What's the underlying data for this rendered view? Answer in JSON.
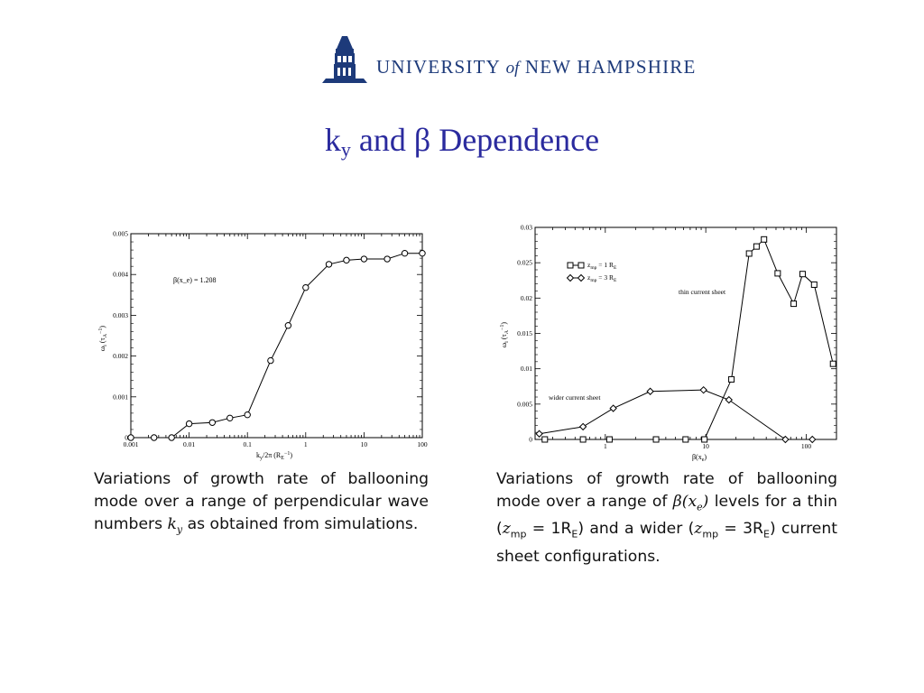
{
  "header": {
    "logo_text_1": "UNIVERSITY",
    "logo_text_of": "of",
    "logo_text_2": "NEW HAMPSHIRE",
    "brand_color": "#1d3a7a"
  },
  "slide": {
    "title_k": "k",
    "title_sub": "y",
    "title_rest": " and  β Dependence"
  },
  "captions": {
    "left": "Variations of growth rate of ballooning mode over a range of perpendicular wave numbers k_y as obtained from simulations.",
    "left_parts": [
      "Variations of growth rate of ballooning mode over a range of perpendicular wave numbers ",
      "k",
      "y",
      " as obtained from simulations."
    ],
    "right": "Variations of growth rate of ballooning mode over a range of β(x_e) levels for a thin (z_mp = 1R_E) and a wider (z_mp = 3R_E) current sheet configurations.",
    "right_parts": [
      "Variations of growth rate of ballooning mode over a range of ",
      "β(x",
      "e",
      ")",
      " levels for a thin (",
      "z",
      "mp",
      " = 1R",
      "E",
      ") and a wider (",
      "z",
      "mp",
      " = 3R",
      "E",
      ") current sheet configurations."
    ]
  },
  "chart_data": [
    {
      "type": "line",
      "xscale": "log",
      "xlim": [
        0.001,
        100
      ],
      "ylim": [
        0,
        0.005
      ],
      "xticks": [
        0.001,
        0.01,
        0.1,
        1,
        10,
        100
      ],
      "xtick_labels": [
        "0.001",
        "0.01",
        "0.1",
        "1",
        "10",
        "100"
      ],
      "yticks": [
        0,
        0.001,
        0.002,
        0.003,
        0.004,
        0.005
      ],
      "ytick_labels": [
        "0",
        "0.001",
        "0.002",
        "0.003",
        "0.004",
        "0.005"
      ],
      "xlabel": "k_y/2π (R_E⁻¹)",
      "ylabel": "ω_i (τ_A⁻¹)",
      "annotation": "β(x_e) = 1.208",
      "marker": "circle",
      "grid": false,
      "series": [
        {
          "x": [
            0.001,
            0.0025,
            0.005,
            0.01,
            0.025,
            0.05,
            0.1,
            0.25,
            0.5,
            1,
            2.5,
            5,
            10,
            25,
            50,
            100
          ],
          "values": [
            0,
            0,
            0,
            0.00034,
            0.00037,
            0.00048,
            0.00056,
            0.00189,
            0.00275,
            0.00368,
            0.00425,
            0.00435,
            0.00438,
            0.00438,
            0.00452,
            0.00452
          ]
        }
      ]
    },
    {
      "type": "line",
      "xscale": "log",
      "xlim": [
        0.2,
        200
      ],
      "ylim": [
        0,
        0.03
      ],
      "xticks": [
        1,
        10,
        100
      ],
      "xtick_labels": [
        "1",
        "10",
        "100"
      ],
      "yticks": [
        0,
        0.005,
        0.01,
        0.015,
        0.02,
        0.025,
        0.03
      ],
      "ytick_labels": [
        "0",
        "0.005",
        "0.01",
        "0.015",
        "0.02",
        "0.025",
        "0.03"
      ],
      "xlabel": "β(x_e)",
      "ylabel": "ω_i (τ_A⁻¹)",
      "legend_position": "top-left",
      "grid": false,
      "annotations": [
        "thin current sheet",
        "wider current sheet"
      ],
      "series": [
        {
          "name": "z_mp = 1 R_E",
          "marker": "square",
          "x": [
            0.25,
            0.6,
            1.1,
            3.2,
            6.3,
            9.7,
            18,
            27,
            32,
            38,
            52,
            75,
            92,
            120,
            185
          ],
          "values": [
            0,
            0,
            0,
            0,
            0,
            0,
            0.0085,
            0.0263,
            0.0273,
            0.0283,
            0.0235,
            0.0192,
            0.0234,
            0.0219,
            0.0107
          ]
        },
        {
          "name": "z_mp = 3 R_E",
          "marker": "diamond",
          "x": [
            0.22,
            0.6,
            1.2,
            2.8,
            9.5,
            17,
            62,
            115
          ],
          "values": [
            0.0008,
            0.0018,
            0.0044,
            0.0068,
            0.007,
            0.0056,
            0,
            0
          ]
        }
      ]
    }
  ]
}
